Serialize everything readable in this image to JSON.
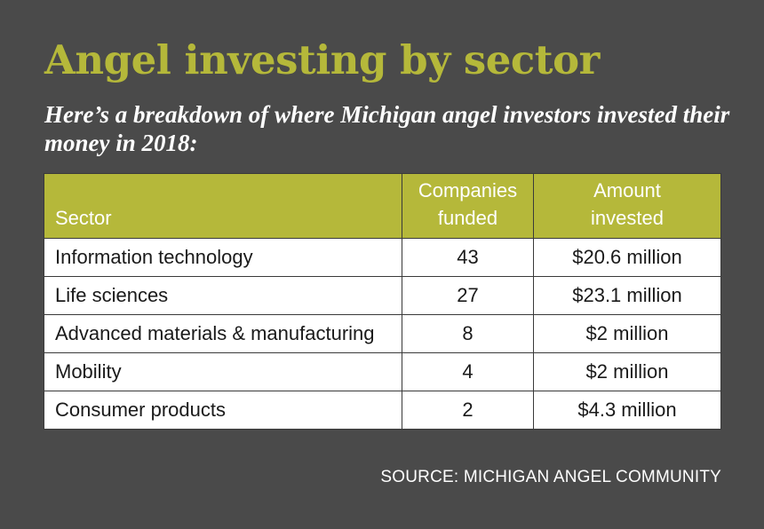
{
  "title": "Angel investing by sector",
  "subtitle": "Here’s a breakdown of where Michigan angel investors invested their money in 2018:",
  "source": "SOURCE: MICHIGAN ANGEL COMMUNITY",
  "colors": {
    "background": "#4a4a4a",
    "accent": "#b5b83a",
    "text_light": "#ffffff",
    "text_dark": "#1a1a1a"
  },
  "table": {
    "headers": {
      "sector": "Sector",
      "companies_line1": "Companies",
      "companies_line2": "funded",
      "amount_line1": "Amount",
      "amount_line2": "invested"
    },
    "rows": [
      {
        "sector": "Information technology",
        "companies": "43",
        "amount": "$20.6 million"
      },
      {
        "sector": "Life sciences",
        "companies": "27",
        "amount": "$23.1 million"
      },
      {
        "sector": "Advanced materials & manufacturing",
        "companies": "8",
        "amount": "$2 million"
      },
      {
        "sector": "Mobility",
        "companies": "4",
        "amount": "$2 million"
      },
      {
        "sector": "Consumer products",
        "companies": "2",
        "amount": "$4.3 million"
      }
    ]
  },
  "chart_data": {
    "type": "table",
    "title": "Angel investing by sector",
    "subtitle": "Here’s a breakdown of where Michigan angel investors invested their money in 2018:",
    "columns": [
      "Sector",
      "Companies funded",
      "Amount invested"
    ],
    "rows": [
      [
        "Information technology",
        43,
        "$20.6 million"
      ],
      [
        "Life sciences",
        27,
        "$23.1 million"
      ],
      [
        "Advanced materials & manufacturing",
        8,
        "$2 million"
      ],
      [
        "Mobility",
        4,
        "$2 million"
      ],
      [
        "Consumer products",
        2,
        "$4.3 million"
      ]
    ],
    "source": "SOURCE: MICHIGAN ANGEL COMMUNITY"
  }
}
